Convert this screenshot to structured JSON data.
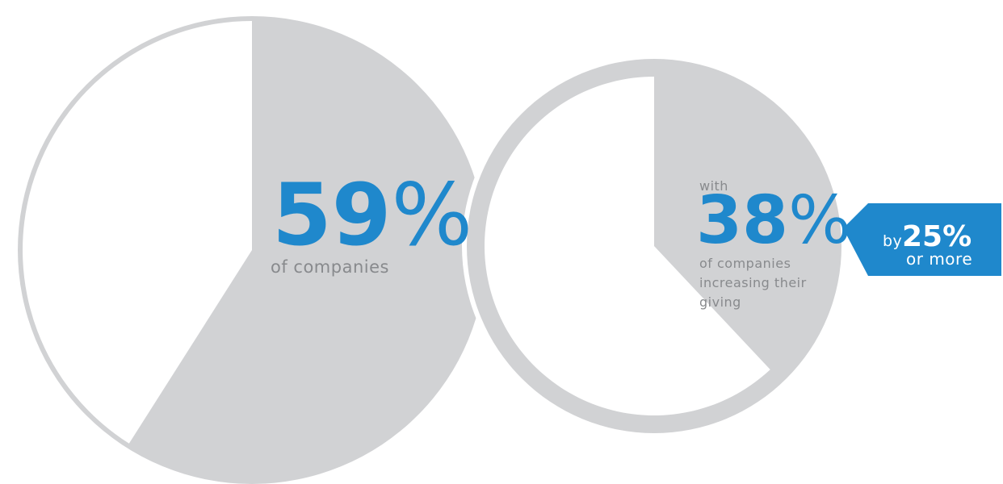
{
  "colors": {
    "ring": "#d1d2d4",
    "accent": "#1f88cc",
    "caption": "#888a8d",
    "background": "#ffffff",
    "banner": "#1f88cc",
    "banner_text": "#ffffff",
    "banner_fold": "#8f9194"
  },
  "chart_data": [
    {
      "type": "pie",
      "slices": [
        {
          "label": "59% of companies",
          "value": 59,
          "color": "#d1d2d4"
        },
        {
          "label": "",
          "value": 41,
          "color": "#ffffff"
        }
      ],
      "stat": {
        "number": "59",
        "percent_sign": "%",
        "caption": "of companies"
      }
    },
    {
      "type": "pie",
      "slices": [
        {
          "label": "38% of companies increasing their giving",
          "value": 38,
          "color": "#d1d2d4"
        },
        {
          "label": "",
          "value": 62,
          "color": "#ffffff"
        }
      ],
      "stat": {
        "prefix": "with",
        "number": "38",
        "percent_sign": "%",
        "caption_lines": [
          "of companies",
          "increasing their",
          "giving"
        ]
      },
      "banner": {
        "prefix": "by",
        "value": "25%",
        "suffix": "or more"
      }
    }
  ]
}
